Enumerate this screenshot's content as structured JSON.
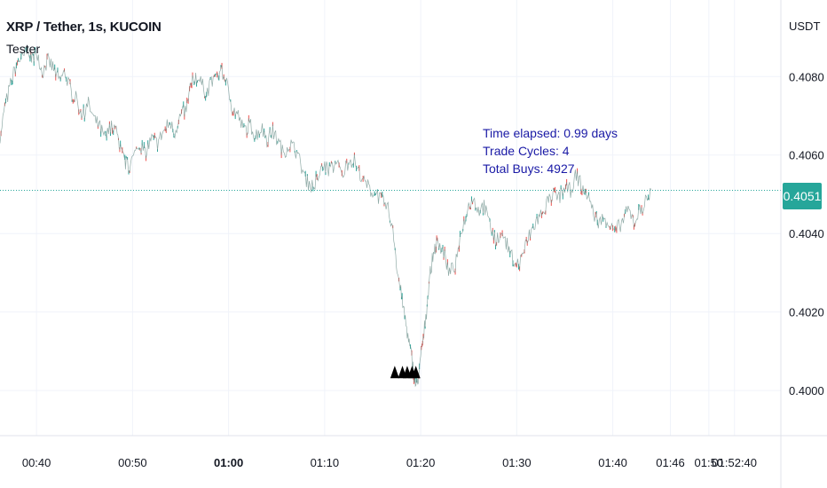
{
  "header": {
    "title": "XRP / Tether, 1s, KUCOIN",
    "indicator": "Tester"
  },
  "axis": {
    "unit": "USDT"
  },
  "price_badge": {
    "value": "0.4051",
    "color": "#26a69a"
  },
  "annotation": {
    "lines": [
      "Time elapsed: 0.99 days",
      "Trade Cycles: 4",
      "Total Buys: 4927"
    ],
    "color": "#1a1aa6"
  },
  "colors": {
    "up": "#26a69a",
    "down": "#ef5350",
    "grid": "#f0f3fa",
    "text": "#131722"
  },
  "chart_data": {
    "type": "line",
    "title": "XRP / Tether, 1s, KUCOIN",
    "ylabel": "USDT",
    "ylim": [
      0.39885,
      0.40995
    ],
    "y_ticks": [
      "0.4080",
      "0.4060",
      "0.4040",
      "0.4020",
      "0.4000"
    ],
    "y_tick_values": [
      0.408,
      0.406,
      0.404,
      0.402,
      0.4
    ],
    "x_ticks": [
      {
        "label": "00:40",
        "t": 40.0,
        "bold": false
      },
      {
        "label": "00:50",
        "t": 50.0,
        "bold": false
      },
      {
        "label": "01:00",
        "t": 60.0,
        "bold": true
      },
      {
        "label": "01:10",
        "t": 70.0,
        "bold": false
      },
      {
        "label": "01:20",
        "t": 80.0,
        "bold": false
      },
      {
        "label": "01:30",
        "t": 90.0,
        "bold": false
      },
      {
        "label": "01:40",
        "t": 100.0,
        "bold": false
      },
      {
        "label": "01:46",
        "t": 106.0,
        "bold": false
      },
      {
        "label": "01:50",
        "t": 110.0,
        "bold": false
      },
      {
        "label": "01:52:40",
        "t": 112.67,
        "bold": false
      }
    ],
    "xlim": [
      36.2,
      117.5
    ],
    "last_price": 0.4051,
    "grid": true,
    "series": [
      {
        "points": [
          [
            36.2,
            0.4065
          ],
          [
            36.8,
            0.4073
          ],
          [
            37.4,
            0.4079
          ],
          [
            38.0,
            0.4084
          ],
          [
            38.6,
            0.4085
          ],
          [
            39.2,
            0.4087
          ],
          [
            39.6,
            0.4084
          ],
          [
            40.0,
            0.4087
          ],
          [
            40.6,
            0.4081
          ],
          [
            41.2,
            0.4084
          ],
          [
            41.8,
            0.4082
          ],
          [
            42.4,
            0.4079
          ],
          [
            43.0,
            0.4081
          ],
          [
            43.6,
            0.4076
          ],
          [
            44.2,
            0.4074
          ],
          [
            44.8,
            0.407
          ],
          [
            45.4,
            0.4073
          ],
          [
            46.0,
            0.4069
          ],
          [
            46.6,
            0.4067
          ],
          [
            47.2,
            0.4064
          ],
          [
            47.8,
            0.4068
          ],
          [
            48.4,
            0.4065
          ],
          [
            48.8,
            0.4061
          ],
          [
            49.2,
            0.4058
          ],
          [
            49.6,
            0.4057
          ],
          [
            50.2,
            0.406
          ],
          [
            50.8,
            0.4062
          ],
          [
            51.4,
            0.4061
          ],
          [
            52.0,
            0.4064
          ],
          [
            52.6,
            0.4063
          ],
          [
            53.2,
            0.4066
          ],
          [
            53.8,
            0.4068
          ],
          [
            54.4,
            0.4066
          ],
          [
            55.0,
            0.407
          ],
          [
            55.6,
            0.4072
          ],
          [
            56.0,
            0.4077
          ],
          [
            56.5,
            0.408
          ],
          [
            57.0,
            0.4079
          ],
          [
            57.6,
            0.4076
          ],
          [
            58.2,
            0.4078
          ],
          [
            58.8,
            0.408
          ],
          [
            59.2,
            0.4082
          ],
          [
            59.8,
            0.4078
          ],
          [
            60.4,
            0.4072
          ],
          [
            61.0,
            0.407
          ],
          [
            61.6,
            0.4066
          ],
          [
            62.2,
            0.4068
          ],
          [
            62.8,
            0.4065
          ],
          [
            63.4,
            0.4067
          ],
          [
            64.0,
            0.4064
          ],
          [
            64.6,
            0.4066
          ],
          [
            65.2,
            0.4063
          ],
          [
            65.8,
            0.4061
          ],
          [
            66.4,
            0.4063
          ],
          [
            67.0,
            0.4061
          ],
          [
            67.6,
            0.4057
          ],
          [
            68.2,
            0.4053
          ],
          [
            68.8,
            0.4052
          ],
          [
            69.4,
            0.4055
          ],
          [
            70.0,
            0.4057
          ],
          [
            70.6,
            0.4056
          ],
          [
            71.2,
            0.4058
          ],
          [
            71.8,
            0.4055
          ],
          [
            72.4,
            0.4058
          ],
          [
            73.0,
            0.4059
          ],
          [
            73.6,
            0.4056
          ],
          [
            74.2,
            0.4053
          ],
          [
            74.8,
            0.4051
          ],
          [
            75.4,
            0.405
          ],
          [
            76.0,
            0.4048
          ],
          [
            76.6,
            0.4046
          ],
          [
            77.2,
            0.4039
          ],
          [
            77.6,
            0.403
          ],
          [
            78.0,
            0.4024
          ],
          [
            78.4,
            0.4018
          ],
          [
            78.8,
            0.4012
          ],
          [
            79.2,
            0.4006
          ],
          [
            79.5,
            0.4001
          ],
          [
            79.8,
            0.4004
          ],
          [
            80.2,
            0.4012
          ],
          [
            80.6,
            0.402
          ],
          [
            81.0,
            0.403
          ],
          [
            81.4,
            0.4036
          ],
          [
            81.8,
            0.4038
          ],
          [
            82.4,
            0.4035
          ],
          [
            83.0,
            0.403
          ],
          [
            83.6,
            0.4032
          ],
          [
            84.2,
            0.404
          ],
          [
            84.8,
            0.4046
          ],
          [
            85.4,
            0.4049
          ],
          [
            86.0,
            0.4046
          ],
          [
            86.6,
            0.4047
          ],
          [
            87.2,
            0.4042
          ],
          [
            87.8,
            0.4038
          ],
          [
            88.4,
            0.4041
          ],
          [
            89.0,
            0.4037
          ],
          [
            89.6,
            0.4034
          ],
          [
            90.2,
            0.4032
          ],
          [
            90.8,
            0.4036
          ],
          [
            91.4,
            0.404
          ],
          [
            92.0,
            0.4043
          ],
          [
            92.6,
            0.4045
          ],
          [
            93.2,
            0.4048
          ],
          [
            93.8,
            0.405
          ],
          [
            94.4,
            0.4049
          ],
          [
            95.0,
            0.4052
          ],
          [
            95.6,
            0.4051
          ],
          [
            96.2,
            0.4055
          ],
          [
            96.8,
            0.4052
          ],
          [
            97.4,
            0.405
          ],
          [
            98.0,
            0.4045
          ],
          [
            98.6,
            0.4043
          ],
          [
            99.2,
            0.4044
          ],
          [
            99.8,
            0.4042
          ],
          [
            100.4,
            0.4041
          ],
          [
            101.0,
            0.4043
          ],
          [
            101.6,
            0.4046
          ],
          [
            102.2,
            0.4043
          ],
          [
            102.8,
            0.4046
          ],
          [
            103.4,
            0.4048
          ],
          [
            104.0,
            0.4051
          ]
        ]
      }
    ],
    "markers": {
      "t": [
        77.3,
        78.1,
        78.6,
        79.1,
        79.5
      ],
      "price": 0.40045
    }
  }
}
